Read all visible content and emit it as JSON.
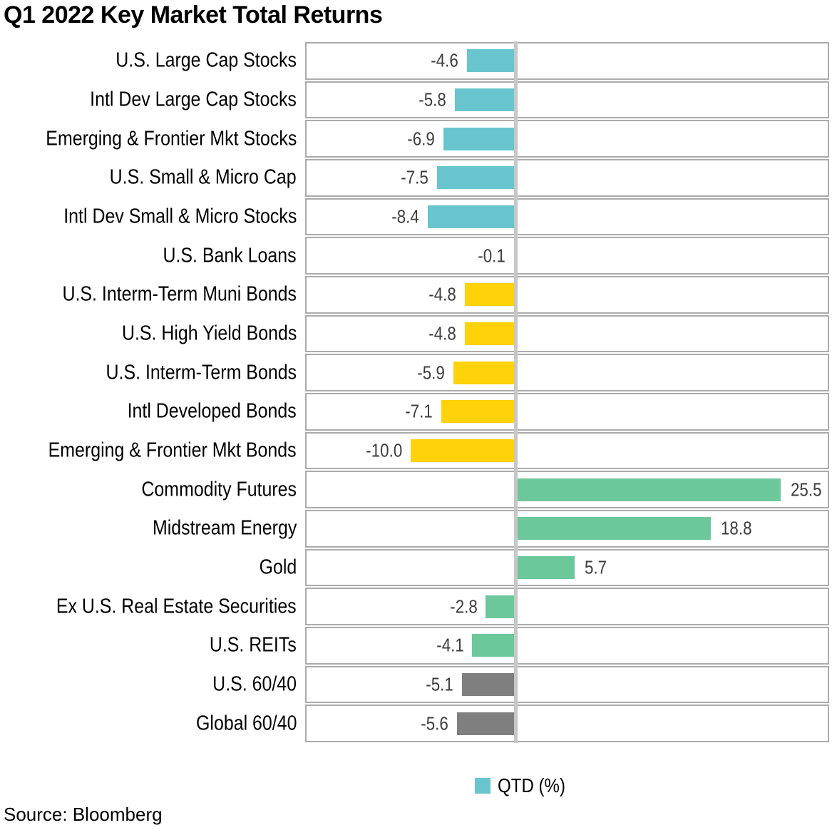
{
  "title": "Q1 2022 Key Market Total Returns",
  "legend": {
    "label": "QTD (%)",
    "swatch_color": "#69c5cd"
  },
  "source": "Source: Bloomberg",
  "chart_data": {
    "type": "bar",
    "orientation": "horizontal",
    "title": "Q1 2022 Key Market Total Returns",
    "series_name": "QTD (%)",
    "xlim": [
      -20,
      30
    ],
    "zero_fraction": 0.4,
    "grid": false,
    "legend_position": "bottom-center",
    "row_border_color": "#ababab",
    "zero_axis_color": "#c6c7c6",
    "categories": [
      "U.S. Large Cap Stocks",
      "Intl Dev Large Cap Stocks",
      "Emerging & Frontier Mkt Stocks",
      "U.S. Small & Micro Cap",
      "Intl Dev Small & Micro Stocks",
      "U.S. Bank Loans",
      "U.S. Interm-Term Muni Bonds",
      "U.S. High Yield Bonds",
      "U.S. Interm-Term Bonds",
      "Intl Developed Bonds",
      "Emerging & Frontier Mkt Bonds",
      "Commodity Futures",
      "Midstream Energy",
      "Gold",
      "Ex U.S. Real Estate Securities",
      "U.S. REITs",
      "U.S. 60/40",
      "Global 60/40"
    ],
    "values": [
      -4.6,
      -5.8,
      -6.9,
      -7.5,
      -8.4,
      -0.1,
      -4.8,
      -4.8,
      -5.9,
      -7.1,
      -10.0,
      25.5,
      18.8,
      5.7,
      -2.8,
      -4.1,
      -5.1,
      -5.6
    ],
    "value_labels": [
      "-4.6",
      "-5.8",
      "-6.9",
      "-7.5",
      "-8.4",
      "-0.1",
      "-4.8",
      "-4.8",
      "-5.9",
      "-7.1",
      "-10.0",
      "25.5",
      "18.8",
      "5.7",
      "-2.8",
      "-4.1",
      "-5.1",
      "-5.6"
    ],
    "groups": [
      "stocks",
      "stocks",
      "stocks",
      "stocks",
      "stocks",
      "bonds",
      "bonds",
      "bonds",
      "bonds",
      "bonds",
      "bonds",
      "real_assets",
      "real_assets",
      "real_assets",
      "real_assets",
      "real_assets",
      "blend",
      "blend"
    ],
    "group_colors": {
      "stocks": "#69c5cd",
      "bonds": "#ffd20a",
      "real_assets": "#6cc79b",
      "blend": "#7f7f7f"
    }
  }
}
